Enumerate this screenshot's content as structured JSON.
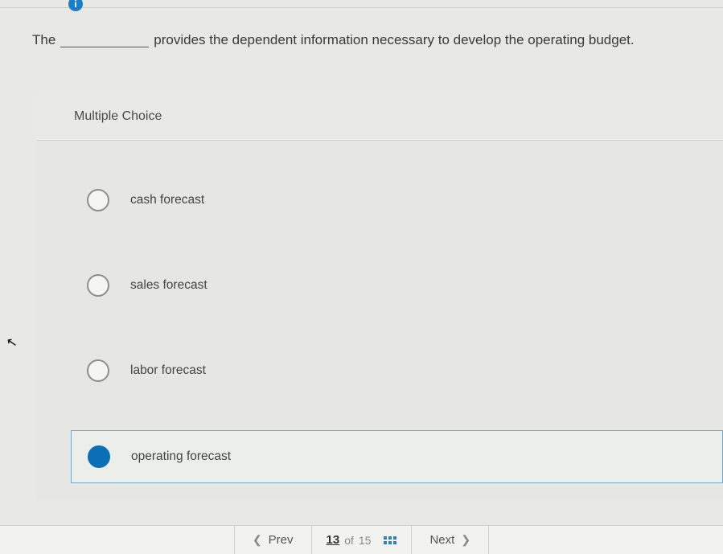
{
  "question": {
    "prefix": "The",
    "suffix": "provides the dependent information necessary to develop the operating budget."
  },
  "section_title": "Multiple Choice",
  "choices": [
    {
      "label": "cash forecast",
      "selected": false
    },
    {
      "label": "sales forecast",
      "selected": false
    },
    {
      "label": "labor forecast",
      "selected": false
    },
    {
      "label": "operating forecast",
      "selected": true
    }
  ],
  "nav": {
    "prev": "Prev",
    "next": "Next",
    "current": "13",
    "of_word": "of",
    "total": "15"
  },
  "colors": {
    "accent": "#0a6fb7",
    "selection_border": "#7aa9c7",
    "bg": "#e8e8e4"
  },
  "info_icon_glyph": "i"
}
